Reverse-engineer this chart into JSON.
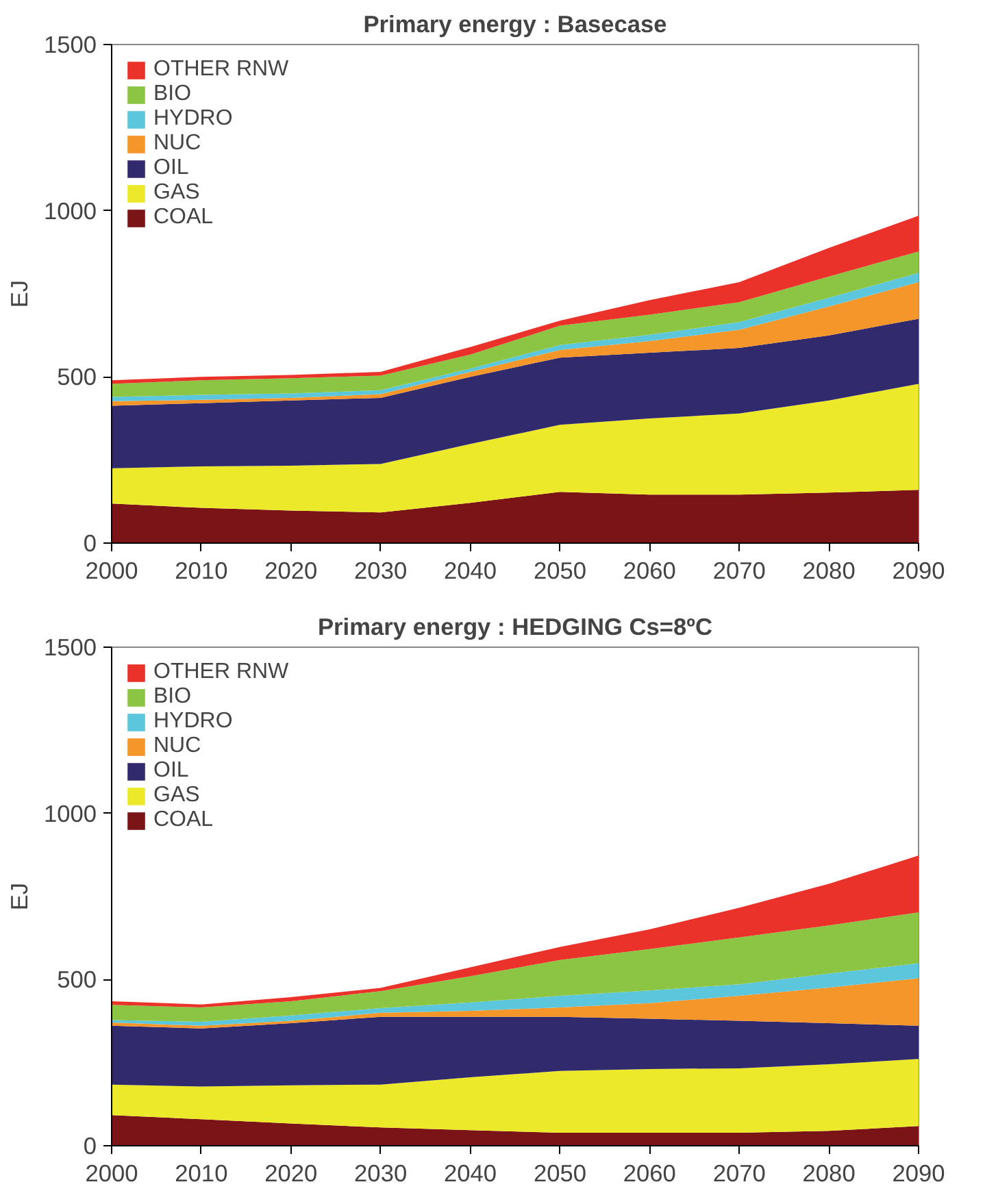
{
  "chart_data": [
    {
      "type": "area",
      "stacked": true,
      "title": "Primary energy : Basecase",
      "ylabel": "EJ",
      "x": [
        2000,
        2010,
        2020,
        2030,
        2040,
        2050,
        2060,
        2070,
        2080,
        2090
      ],
      "xlim": [
        2000,
        2090
      ],
      "xticks": [
        2000,
        2010,
        2020,
        2030,
        2040,
        2050,
        2060,
        2070,
        2080,
        2090
      ],
      "ylim": [
        0,
        1500
      ],
      "yticks": [
        0,
        500,
        1000,
        1500
      ],
      "grid": false,
      "legend": "top left",
      "series": [
        {
          "name": "COAL",
          "color": "#7a1416",
          "values": [
            119,
            106,
            98,
            92,
            121,
            154,
            146,
            146,
            152,
            160
          ]
        },
        {
          "name": "GAS",
          "color": "#ece82a",
          "values": [
            106,
            125,
            135,
            146,
            177,
            202,
            229,
            244,
            277,
            319
          ]
        },
        {
          "name": "OIL",
          "color": "#312a6c",
          "values": [
            188,
            190,
            196,
            199,
            202,
            202,
            198,
            197,
            196,
            196
          ]
        },
        {
          "name": "NUC",
          "color": "#f5962b",
          "values": [
            14,
            10,
            8,
            11,
            15,
            23,
            35,
            55,
            87,
            110
          ]
        },
        {
          "name": "HYDRO",
          "color": "#5bc6dc",
          "values": [
            13,
            15,
            13,
            12,
            10,
            15,
            19,
            23,
            26,
            28
          ]
        },
        {
          "name": "BIO",
          "color": "#8cc543",
          "values": [
            39,
            44,
            46,
            44,
            42,
            58,
            60,
            60,
            64,
            64
          ]
        },
        {
          "name": "OTHER RNW",
          "color": "#ea312a",
          "values": [
            11,
            10,
            10,
            11,
            23,
            15,
            44,
            60,
            86,
            108
          ]
        }
      ]
    },
    {
      "type": "area",
      "stacked": true,
      "title": "Primary energy : HEDGING Cs=8ºC",
      "ylabel": "EJ",
      "x": [
        2000,
        2010,
        2020,
        2030,
        2040,
        2050,
        2060,
        2070,
        2080,
        2090
      ],
      "xlim": [
        2000,
        2090
      ],
      "xticks": [
        2000,
        2010,
        2020,
        2030,
        2040,
        2050,
        2060,
        2070,
        2080,
        2090
      ],
      "ylim": [
        0,
        1500
      ],
      "yticks": [
        0,
        500,
        1000,
        1500
      ],
      "grid": false,
      "legend": "top left",
      "series": [
        {
          "name": "COAL",
          "color": "#7a1416",
          "values": [
            92,
            80,
            67,
            55,
            47,
            39,
            39,
            39,
            45,
            59
          ]
        },
        {
          "name": "GAS",
          "color": "#ece82a",
          "values": [
            92,
            98,
            115,
            129,
            159,
            186,
            192,
            194,
            200,
            202
          ]
        },
        {
          "name": "OIL",
          "color": "#312a6c",
          "values": [
            177,
            175,
            187,
            204,
            182,
            163,
            151,
            143,
            124,
            100
          ]
        },
        {
          "name": "NUC",
          "color": "#f5962b",
          "values": [
            10,
            8,
            7,
            12,
            18,
            28,
            47,
            75,
            107,
            143
          ]
        },
        {
          "name": "HYDRO",
          "color": "#5bc6dc",
          "values": [
            7,
            12,
            16,
            14,
            25,
            35,
            38,
            35,
            42,
            45
          ]
        },
        {
          "name": "BIO",
          "color": "#8cc543",
          "values": [
            46,
            43,
            43,
            51,
            79,
            108,
            125,
            141,
            145,
            153
          ]
        },
        {
          "name": "OTHER RNW",
          "color": "#ea312a",
          "values": [
            11,
            9,
            12,
            10,
            27,
            39,
            59,
            89,
            125,
            171
          ]
        }
      ]
    }
  ]
}
